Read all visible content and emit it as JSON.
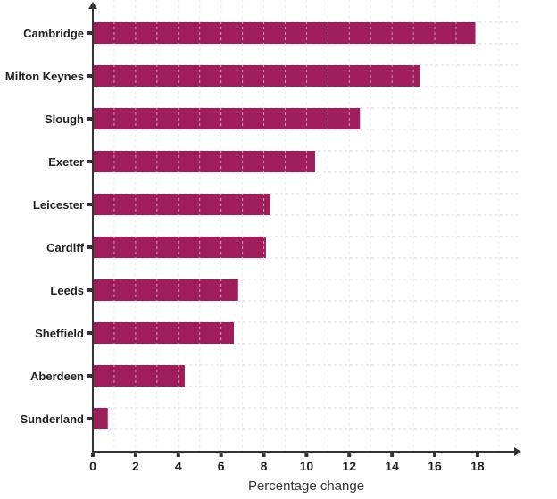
{
  "chart_data": {
    "type": "bar",
    "orientation": "horizontal",
    "categories": [
      "Cambridge",
      "Milton Keynes",
      "Slough",
      "Exeter",
      "Leicester",
      "Cardiff",
      "Leeds",
      "Sheffield",
      "Aberdeen",
      "Sunderland"
    ],
    "values": [
      17.9,
      15.3,
      12.5,
      10.4,
      8.3,
      8.1,
      6.8,
      6.6,
      4.3,
      0.7
    ],
    "title": "",
    "xlabel": "Percentage change",
    "ylabel": "",
    "xlim": [
      0,
      19
    ],
    "xticks": [
      "0",
      "2",
      "4",
      "6",
      "8",
      "10",
      "12",
      "14",
      "16",
      "18"
    ],
    "grid": true,
    "bar_color": "#9e1d5b",
    "grid_color": "#d8d6e6"
  }
}
